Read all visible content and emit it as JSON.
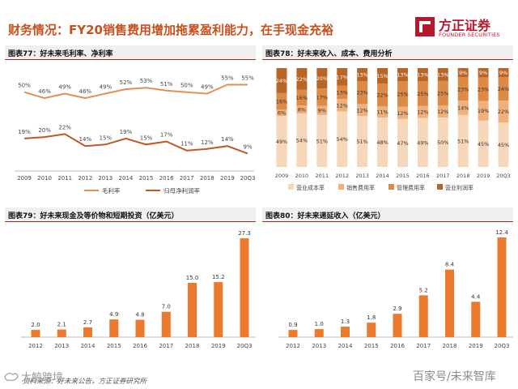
{
  "header": {
    "title": "财务情况：FY20销售费用增加拖累盈利能力，在手现金充裕",
    "logo_cn": "方正证券",
    "logo_en": "FOUNDER SECURITIES"
  },
  "colors": {
    "accent": "#c8501e",
    "line_light": "#e48f52",
    "line_dark": "#c0581f",
    "bar": "#ec7a2e",
    "stack1": "#f7d7b9",
    "stack2": "#f0b07d",
    "stack3": "#de8a47",
    "stack4": "#b86528"
  },
  "chart_data": [
    {
      "type": "line",
      "panel_title": "图表77：好未来毛利率、净利率",
      "categories": [
        "2009",
        "2010",
        "2011",
        "2012",
        "2013",
        "2014",
        "2015",
        "2016",
        "2017",
        "2018",
        "2019",
        "20Q3"
      ],
      "series": [
        {
          "name": "毛利率",
          "values": [
            50,
            46,
            49,
            46,
            49,
            52,
            53,
            51,
            50,
            49,
            55,
            55
          ],
          "labels": [
            "50%",
            "46%",
            "49%",
            "46%",
            "49%",
            "52%",
            "53%",
            "51%",
            "50%",
            "49%",
            "55%",
            "55%"
          ]
        },
        {
          "name": "归母净利润率",
          "values": [
            19,
            20,
            22,
            14,
            15,
            19,
            15,
            17,
            11,
            12,
            14,
            9
          ],
          "labels": [
            "19%",
            "20%",
            "22%",
            "14%",
            "15%",
            "19%",
            "15%",
            "17%",
            "11%",
            "12%",
            "14%",
            "9%"
          ]
        }
      ],
      "ylim": [
        0,
        65
      ],
      "legend": [
        "毛利率",
        "归母净利润率"
      ]
    },
    {
      "type": "bar",
      "stacked": true,
      "panel_title": "图表78：好未来收入、成本、费用分析",
      "categories": [
        "2009",
        "2010",
        "2011",
        "2012",
        "2013",
        "2014",
        "2015",
        "2016",
        "2017",
        "2018",
        "2019",
        "20Q3"
      ],
      "series": [
        {
          "name": "营业成本率",
          "values": [
            49,
            54,
            51,
            54,
            51,
            48,
            47,
            49,
            50,
            51,
            45,
            45
          ],
          "labels": [
            "49%",
            "54%",
            "51%",
            "54%",
            "51%",
            "48%",
            "47%",
            "49%",
            "50%",
            "51%",
            "45%",
            "45%"
          ]
        },
        {
          "name": "销售费用率",
          "values": [
            6,
            8,
            9,
            12,
            12,
            11,
            12,
            12,
            12,
            14,
            19,
            22
          ],
          "labels": [
            "6%",
            "8%",
            "9%",
            "12%",
            "12%",
            "11%",
            "12%",
            "12%",
            "12%",
            "14%",
            "19%",
            "22%"
          ]
        },
        {
          "name": "管理费用率",
          "values": [
            16,
            16,
            17,
            13,
            23,
            22,
            25,
            25,
            25,
            23,
            23,
            24
          ],
          "labels": [
            "16%",
            "16%",
            "17%",
            "13%",
            "23%",
            "22%",
            "25%",
            "25%",
            "25%",
            "23%",
            "23%",
            "24%"
          ]
        },
        {
          "name": "营业利润率",
          "values": [
            24,
            22,
            20,
            17,
            13,
            15,
            13,
            13,
            13,
            9,
            9,
            9
          ],
          "labels": [
            "24%",
            "22%",
            "20%",
            "17%",
            "13%",
            "15%",
            "13%",
            "13%",
            "13%",
            "9%",
            "9%",
            "9%"
          ]
        }
      ],
      "legend": [
        "营业成本率",
        "销售费用率",
        "管理费用率",
        "营业利润率"
      ]
    },
    {
      "type": "bar",
      "panel_title": "图表79：好未来现金及等价物和短期投资（亿美元）",
      "categories": [
        "2012",
        "2013",
        "2014",
        "2015",
        "2016",
        "2017",
        "2018",
        "2019",
        "20Q3"
      ],
      "values": [
        2.0,
        2.1,
        2.7,
        4.9,
        4.8,
        7.0,
        15.0,
        15.2,
        27.3
      ],
      "labels": [
        "2.0",
        "2.1",
        "2.7",
        "4.9",
        "4.8",
        "7.0",
        "15.0",
        "15.2",
        "27.3"
      ],
      "ylim": [
        0,
        30
      ]
    },
    {
      "type": "bar",
      "panel_title": "图表80：好未来递延收入（亿美元）",
      "categories": [
        "2012",
        "2013",
        "2014",
        "2015",
        "2016",
        "2017",
        "2018",
        "2019",
        "20Q3"
      ],
      "values": [
        0.9,
        1.0,
        1.3,
        1.8,
        2.9,
        5.2,
        8.4,
        4.4,
        12.4
      ],
      "labels": [
        "0.9",
        "1.0",
        "1.3",
        "1.8",
        "2.9",
        "5.2",
        "8.4",
        "4.4",
        "12.4"
      ],
      "ylim": [
        0,
        13.5
      ]
    }
  ],
  "footer": {
    "source": "资料来源：好未来公告，方正证券研究所",
    "watermark_left": "大鲸跨境",
    "watermark_right": "百家号/未来智库"
  }
}
